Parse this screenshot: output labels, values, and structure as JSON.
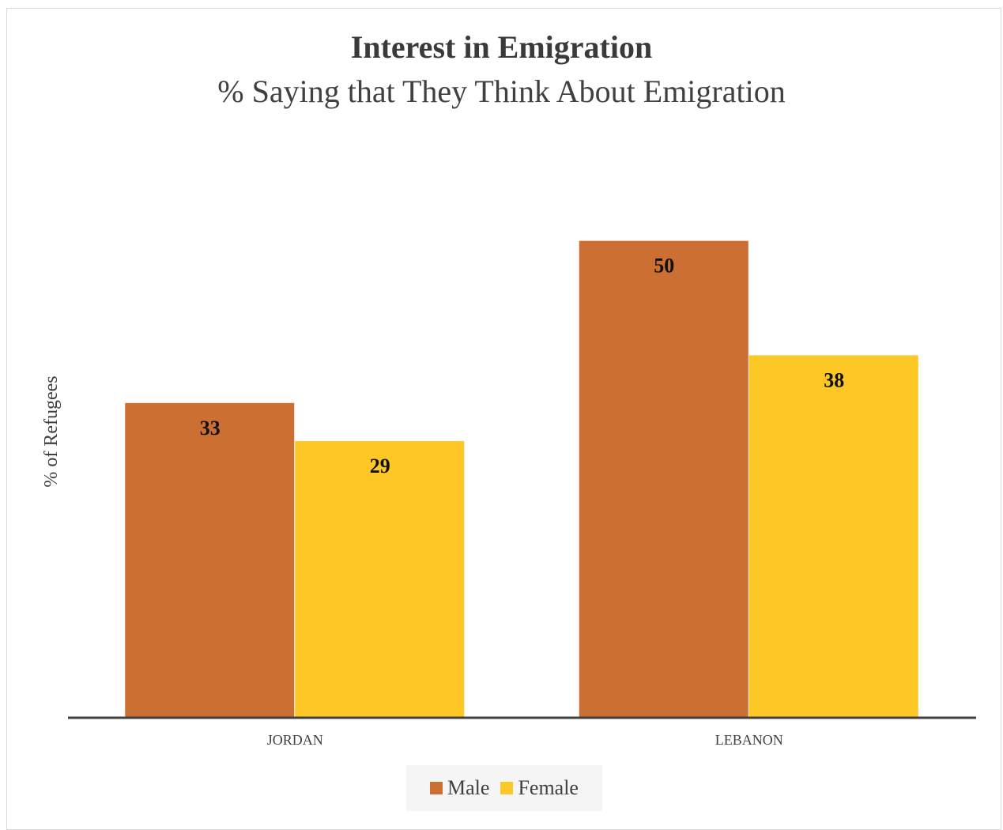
{
  "chart_data": {
    "type": "bar",
    "title": "Interest in Emigration",
    "subtitle": "% Saying that They Think About Emigration",
    "ylabel": "% of Refugees",
    "xlabel": "",
    "categories": [
      "JORDAN",
      "LEBANON"
    ],
    "series": [
      {
        "name": "Male",
        "color": "#cc6f32",
        "values": [
          33,
          50
        ]
      },
      {
        "name": "Female",
        "color": "#fdc826",
        "values": [
          29,
          38
        ]
      }
    ],
    "ylim": [
      0,
      60
    ],
    "grid": false,
    "legend_position": "bottom",
    "data_labels": true
  }
}
